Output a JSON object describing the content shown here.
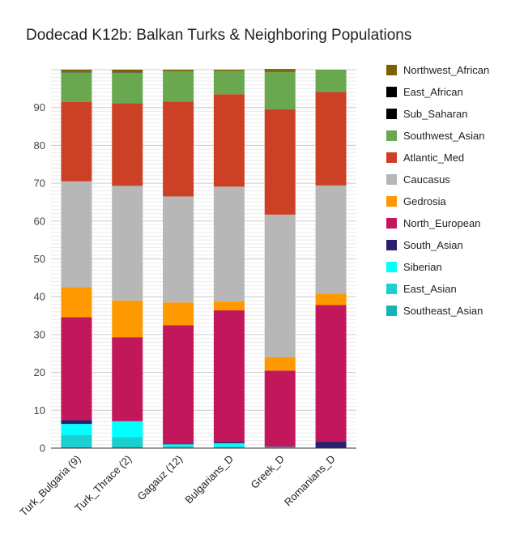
{
  "chart_data": {
    "type": "bar",
    "stacked": true,
    "title": "Dodecad K12b: Balkan Turks & Neighboring Populations",
    "xlabel": "",
    "ylabel": "",
    "ylim": [
      0,
      100
    ],
    "yticks": [
      0,
      10,
      20,
      30,
      40,
      50,
      60,
      70,
      80,
      90
    ],
    "grid": true,
    "legend_position": "right",
    "categories": [
      "Turk_Bulgaria (9)",
      "Turk_Thrace (2)",
      "Gagauz (12)",
      "Bulgarians_D",
      "Greek_D",
      "Romanians_D"
    ],
    "series": [
      {
        "name": "Southeast_Asian",
        "color": "#12b5b0",
        "values": [
          0.3,
          0.4,
          0.2,
          0.2,
          0.1,
          0.0
        ]
      },
      {
        "name": "East_Asian",
        "color": "#1ad0d0",
        "values": [
          3.2,
          2.5,
          0.4,
          0.3,
          0.1,
          0.0
        ]
      },
      {
        "name": "Siberian",
        "color": "#00ffff",
        "values": [
          2.9,
          4.2,
          0.4,
          0.8,
          0.1,
          0.1
        ]
      },
      {
        "name": "South_Asian",
        "color": "#2a1f6e",
        "values": [
          1.0,
          0.0,
          0.2,
          0.3,
          0.1,
          1.6
        ]
      },
      {
        "name": "North_European",
        "color": "#c2185b",
        "values": [
          27.2,
          22.2,
          31.3,
          34.8,
          20.1,
          36.1
        ]
      },
      {
        "name": "Gedrosia",
        "color": "#ff9900",
        "values": [
          7.9,
          9.7,
          6.0,
          2.4,
          3.5,
          3.0
        ]
      },
      {
        "name": "Caucasus",
        "color": "#b7b7b7",
        "values": [
          28.0,
          30.3,
          28.0,
          30.3,
          37.7,
          28.6
        ]
      },
      {
        "name": "Atlantic_Med",
        "color": "#cc4125",
        "values": [
          21.0,
          21.8,
          25.1,
          24.4,
          27.8,
          24.7
        ]
      },
      {
        "name": "Southwest_Asian",
        "color": "#6aa84f",
        "values": [
          7.8,
          8.1,
          8.0,
          6.2,
          10.0,
          5.9
        ]
      },
      {
        "name": "Sub_Saharan",
        "color": "#000000",
        "values": [
          0.1,
          0.1,
          0.0,
          0.0,
          0.1,
          0.0
        ]
      },
      {
        "name": "East_African",
        "color": "#000000",
        "values": [
          0.0,
          0.0,
          0.0,
          0.0,
          0.0,
          0.0
        ]
      },
      {
        "name": "Northwest_African",
        "color": "#7f6000",
        "values": [
          0.6,
          0.7,
          0.4,
          0.3,
          0.6,
          0.0
        ]
      }
    ],
    "legend_order": [
      "Northwest_African",
      "East_African",
      "Sub_Saharan",
      "Southwest_Asian",
      "Atlantic_Med",
      "Caucasus",
      "Gedrosia",
      "North_European",
      "South_Asian",
      "Siberian",
      "East_Asian",
      "Southeast_Asian"
    ]
  }
}
